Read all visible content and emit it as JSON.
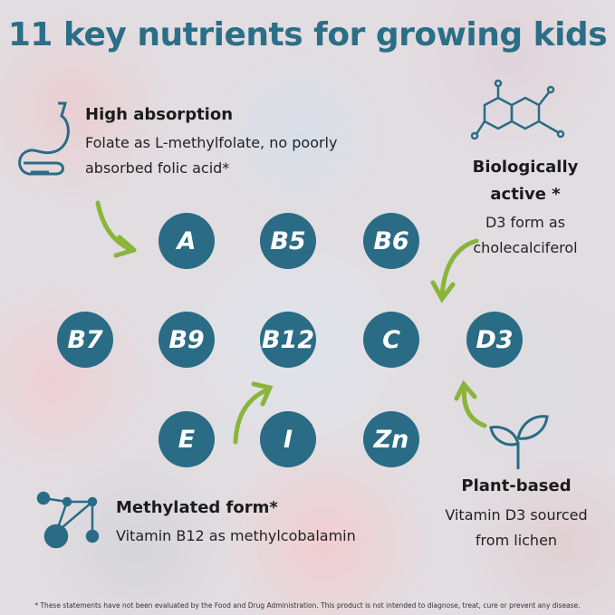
{
  "title": "11 key nutrients for growing kids",
  "features": {
    "absorption": {
      "heading": "High absorption",
      "line1": "Folate as L-methylfolate, no poorly",
      "line2": "absorbed folic acid*",
      "icon": "stomach-icon"
    },
    "active": {
      "heading1": "Biologically",
      "heading2": "active *",
      "line1": "D3 form as",
      "line2": "cholecalciferol",
      "icon": "molecule-icon"
    },
    "plant": {
      "heading": "Plant-based",
      "line1": "Vitamin D3 sourced",
      "line2": "from lichen",
      "icon": "sprout-icon"
    },
    "methylated": {
      "heading": "Methylated form*",
      "line1": "Vitamin B12 as methylcobalamin",
      "icon": "molecule-nodes-icon"
    }
  },
  "nutrients": [
    "A",
    "B5",
    "B6",
    "B7",
    "B9",
    "B12",
    "C",
    "D3",
    "E",
    "I",
    "Zn"
  ],
  "footnote": "* These statements have not been evaluated by the Food and Drug Administration. This product is not intended to diagnose, treat, cure or prevent any disease.",
  "colors": {
    "accent": "#2a6c85",
    "arrow": "#8ab43a"
  }
}
